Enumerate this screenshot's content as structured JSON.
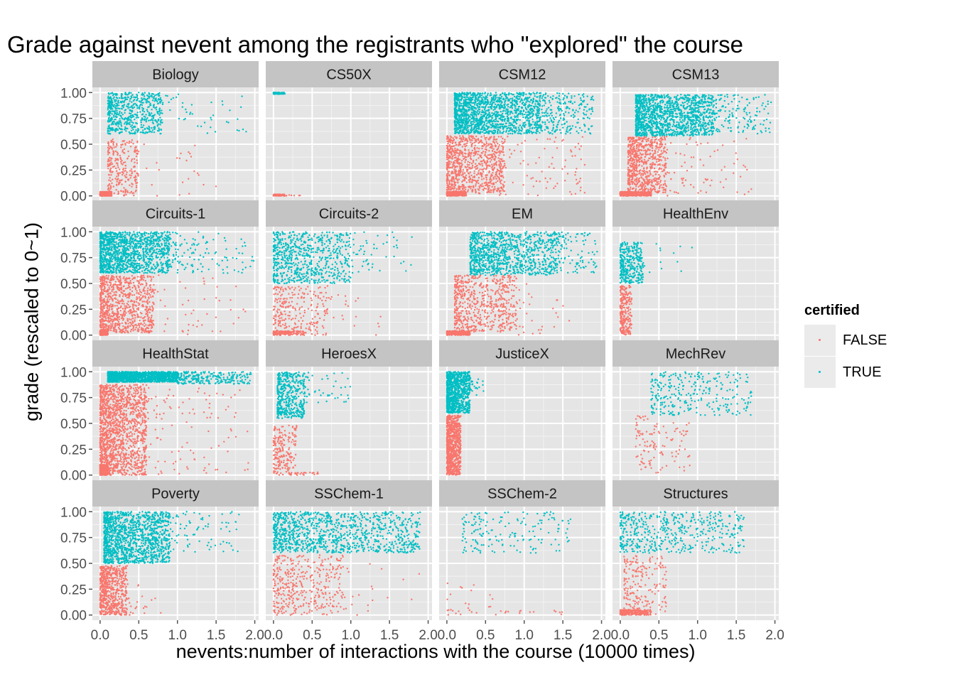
{
  "chart": {
    "title": "Grade against nevent among the registrants who \"explored\" the course",
    "xlabel": "nevents:number of interactions with the course (10000 times)",
    "ylabel": "grade (rescaled to 0~1)"
  },
  "legend": {
    "title": "certified",
    "items": [
      {
        "label": "FALSE",
        "color": "#F8766D"
      },
      {
        "label": "TRUE",
        "color": "#00BFC4"
      }
    ]
  },
  "chart_data": {
    "type": "scatter",
    "facet_layout": "4x4 grid, shared axes",
    "xlim": [
      -0.1,
      2.05
    ],
    "ylim": [
      -0.05,
      1.05
    ],
    "x_ticks": [
      "0.0",
      "0.5",
      "1.0",
      "1.5",
      "2.0"
    ],
    "x_tick_values": [
      0,
      0.5,
      1.0,
      1.5,
      2.0
    ],
    "y_ticks": [
      "0.00",
      "0.25",
      "0.50",
      "0.75",
      "1.00"
    ],
    "y_tick_values": [
      0,
      0.25,
      0.5,
      0.75,
      1.0
    ],
    "grid": true,
    "legend_placement": "right",
    "series": [
      {
        "name": "FALSE",
        "color": "#F8766D"
      },
      {
        "name": "TRUE",
        "color": "#00BFC4"
      }
    ],
    "facets": [
      {
        "name": "Biology",
        "false_clusters": [
          [
            0.0,
            0.15,
            0.0,
            0.04,
            400
          ],
          [
            0.1,
            0.5,
            0.0,
            0.55,
            280
          ],
          [
            0.3,
            1.5,
            0.0,
            0.55,
            25
          ]
        ],
        "true_clusters": [
          [
            0.1,
            0.8,
            0.6,
            1.0,
            600
          ],
          [
            0.8,
            1.9,
            0.6,
            1.0,
            45
          ]
        ]
      },
      {
        "name": "CS50X",
        "false_clusters": [
          [
            0.0,
            0.15,
            0.0,
            0.015,
            120
          ],
          [
            0.15,
            0.35,
            0.0,
            0.01,
            6
          ]
        ],
        "true_clusters": [
          [
            0.0,
            0.15,
            0.985,
            1.0,
            120
          ]
        ]
      },
      {
        "name": "CSM12",
        "false_clusters": [
          [
            0.0,
            0.25,
            0.0,
            0.04,
            400
          ],
          [
            0.0,
            0.75,
            0.02,
            0.58,
            900
          ],
          [
            0.5,
            1.8,
            0.0,
            0.58,
            120
          ]
        ],
        "true_clusters": [
          [
            0.1,
            1.2,
            0.6,
            1.0,
            1500
          ],
          [
            1.2,
            1.9,
            0.6,
            1.0,
            250
          ]
        ]
      },
      {
        "name": "CSM13",
        "false_clusters": [
          [
            0.0,
            0.4,
            0.0,
            0.04,
            450
          ],
          [
            0.1,
            0.6,
            0.03,
            0.58,
            700
          ],
          [
            0.4,
            1.7,
            0.0,
            0.58,
            90
          ]
        ],
        "true_clusters": [
          [
            0.2,
            1.2,
            0.58,
            0.98,
            1400
          ],
          [
            1.2,
            1.95,
            0.6,
            0.98,
            150
          ]
        ]
      },
      {
        "name": "Circuits-1",
        "false_clusters": [
          [
            0.0,
            0.1,
            0.0,
            0.05,
            350
          ],
          [
            0.0,
            0.7,
            0.02,
            0.58,
            900
          ],
          [
            0.5,
            1.9,
            0.0,
            0.58,
            60
          ]
        ],
        "true_clusters": [
          [
            0.0,
            0.9,
            0.6,
            1.0,
            1300
          ],
          [
            0.9,
            2.0,
            0.6,
            1.0,
            120
          ]
        ]
      },
      {
        "name": "Circuits-2",
        "false_clusters": [
          [
            0.0,
            0.4,
            0.0,
            0.04,
            150
          ],
          [
            0.0,
            0.7,
            0.0,
            0.48,
            250
          ],
          [
            0.6,
            1.4,
            0.0,
            0.4,
            25
          ]
        ],
        "true_clusters": [
          [
            0.0,
            1.0,
            0.5,
            1.0,
            700
          ],
          [
            1.0,
            1.8,
            0.6,
            1.0,
            50
          ]
        ]
      },
      {
        "name": "EM",
        "false_clusters": [
          [
            0.0,
            0.3,
            0.0,
            0.04,
            300
          ],
          [
            0.1,
            0.9,
            0.03,
            0.58,
            600
          ],
          [
            0.7,
            1.6,
            0.0,
            0.5,
            50
          ]
        ],
        "true_clusters": [
          [
            0.3,
            1.4,
            0.58,
            1.0,
            1000
          ],
          [
            1.4,
            1.95,
            0.6,
            1.0,
            120
          ]
        ]
      },
      {
        "name": "HealthEnv",
        "false_clusters": [
          [
            0.0,
            0.15,
            0.0,
            0.48,
            250
          ]
        ],
        "true_clusters": [
          [
            0.0,
            0.3,
            0.5,
            0.9,
            350
          ],
          [
            0.3,
            1.0,
            0.6,
            0.9,
            12
          ]
        ]
      },
      {
        "name": "HealthStat",
        "false_clusters": [
          [
            0.0,
            0.1,
            0.0,
            0.1,
            500
          ],
          [
            0.0,
            0.6,
            0.0,
            0.88,
            1500
          ],
          [
            0.5,
            1.95,
            0.0,
            0.88,
            120
          ]
        ],
        "true_clusters": [
          [
            0.1,
            1.0,
            0.9,
            1.0,
            1500
          ],
          [
            1.0,
            1.95,
            0.88,
            1.0,
            250
          ]
        ]
      },
      {
        "name": "HeroesX",
        "false_clusters": [
          [
            0.0,
            0.3,
            0.0,
            0.48,
            200
          ],
          [
            0.2,
            0.6,
            0.0,
            0.03,
            30
          ]
        ],
        "true_clusters": [
          [
            0.05,
            0.4,
            0.55,
            1.0,
            450
          ],
          [
            0.4,
            1.0,
            0.7,
            1.0,
            45
          ]
        ]
      },
      {
        "name": "JusticeX",
        "false_clusters": [
          [
            0.0,
            0.18,
            0.0,
            0.58,
            900
          ]
        ],
        "true_clusters": [
          [
            0.0,
            0.3,
            0.6,
            1.0,
            900
          ],
          [
            0.3,
            0.55,
            0.7,
            0.95,
            20
          ]
        ]
      },
      {
        "name": "MechRev",
        "false_clusters": [
          [
            0.2,
            0.9,
            0.0,
            0.58,
            120
          ]
        ],
        "true_clusters": [
          [
            0.4,
            1.7,
            0.58,
            1.0,
            300
          ]
        ]
      },
      {
        "name": "Poverty",
        "false_clusters": [
          [
            0.0,
            0.35,
            0.0,
            0.48,
            650
          ],
          [
            0.3,
            0.8,
            0.0,
            0.3,
            25
          ]
        ],
        "true_clusters": [
          [
            0.05,
            0.9,
            0.5,
            1.0,
            1400
          ],
          [
            0.9,
            1.8,
            0.6,
            1.0,
            80
          ]
        ]
      },
      {
        "name": "SSChem-1",
        "false_clusters": [
          [
            0.0,
            0.9,
            0.0,
            0.58,
            400
          ],
          [
            0.9,
            1.9,
            0.0,
            0.5,
            20
          ]
        ],
        "true_clusters": [
          [
            0.0,
            1.9,
            0.6,
            1.0,
            1100
          ]
        ]
      },
      {
        "name": "SSChem-2",
        "false_clusters": [
          [
            0.0,
            1.5,
            0.0,
            0.05,
            25
          ],
          [
            0.0,
            0.6,
            0.0,
            0.35,
            15
          ]
        ],
        "true_clusters": [
          [
            0.2,
            1.6,
            0.6,
            1.0,
            170
          ]
        ]
      },
      {
        "name": "Structures",
        "false_clusters": [
          [
            0.0,
            0.4,
            0.0,
            0.05,
            250
          ],
          [
            0.05,
            0.6,
            0.0,
            0.58,
            200
          ]
        ],
        "true_clusters": [
          [
            0.0,
            1.6,
            0.6,
            1.0,
            500
          ]
        ]
      }
    ]
  }
}
